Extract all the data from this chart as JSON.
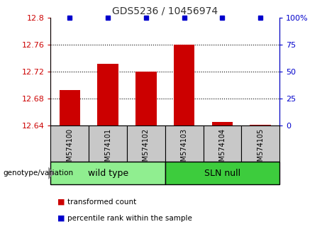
{
  "title": "GDS5236 / 10456974",
  "samples": [
    "GSM574100",
    "GSM574101",
    "GSM574102",
    "GSM574103",
    "GSM574104",
    "GSM574105"
  ],
  "red_values": [
    12.693,
    12.731,
    12.72,
    12.76,
    12.645,
    12.641
  ],
  "blue_values": [
    100,
    100,
    100,
    100,
    100,
    100
  ],
  "ylim_left": [
    12.64,
    12.8
  ],
  "ylim_right": [
    0,
    100
  ],
  "yticks_left": [
    12.64,
    12.68,
    12.72,
    12.76,
    12.8
  ],
  "yticks_right": [
    0,
    25,
    50,
    75,
    100
  ],
  "ytick_labels_left": [
    "12.64",
    "12.68",
    "12.72",
    "12.76",
    "12.8"
  ],
  "ytick_labels_right": [
    "0",
    "25",
    "50",
    "75",
    "100%"
  ],
  "groups": [
    {
      "label": "wild type",
      "start": 0,
      "end": 3,
      "color": "#90EE90"
    },
    {
      "label": "SLN null",
      "start": 3,
      "end": 6,
      "color": "#3DCC3D"
    }
  ],
  "group_label_prefix": "genotype/variation",
  "legend_items": [
    {
      "color": "#CC0000",
      "label": "transformed count"
    },
    {
      "color": "#0000CC",
      "label": "percentile rank within the sample"
    }
  ],
  "bar_color": "#CC0000",
  "dot_color": "#0000CC",
  "sample_box_color": "#C8C8C8",
  "grid_color": "#000000"
}
